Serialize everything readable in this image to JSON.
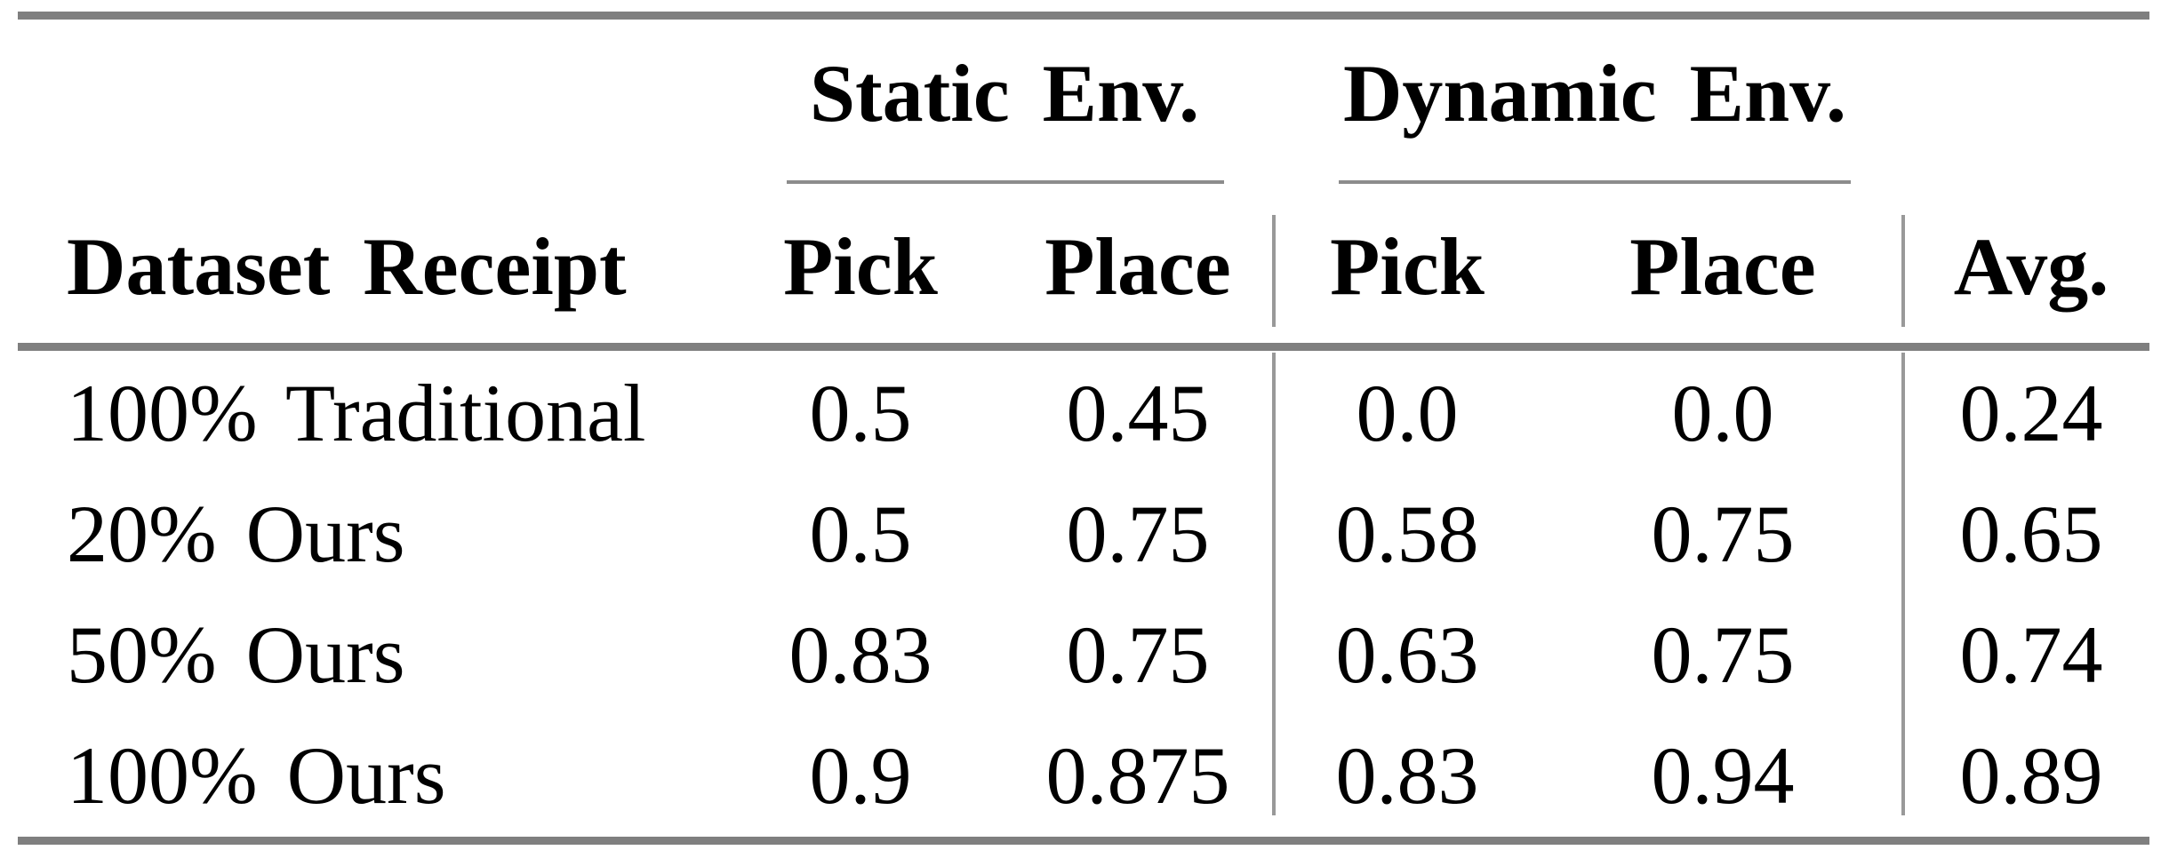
{
  "table": {
    "group_headers": [
      {
        "label": "Static Env."
      },
      {
        "label": "Dynamic Env."
      }
    ],
    "columns": [
      "Dataset Receipt",
      "Pick",
      "Place",
      "Pick",
      "Place",
      "Avg."
    ],
    "rows": [
      {
        "cells": [
          "100% Traditional",
          "0.5",
          "0.45",
          "0.0",
          "0.0",
          "0.24"
        ]
      },
      {
        "cells": [
          "20% Ours",
          "0.5",
          "0.75",
          "0.58",
          "0.75",
          "0.65"
        ]
      },
      {
        "cells": [
          "50% Ours",
          "0.83",
          "0.75",
          "0.63",
          "0.75",
          "0.74"
        ]
      },
      {
        "cells": [
          "100% Ours",
          "0.9",
          "0.875",
          "0.83",
          "0.94",
          "0.89"
        ]
      }
    ],
    "colors": {
      "thick_rule": "#7f7f7f",
      "thin_rule": "#8c8c8c",
      "vertical_rule": "#999999",
      "text": "#000000",
      "background": "#ffffff"
    }
  }
}
